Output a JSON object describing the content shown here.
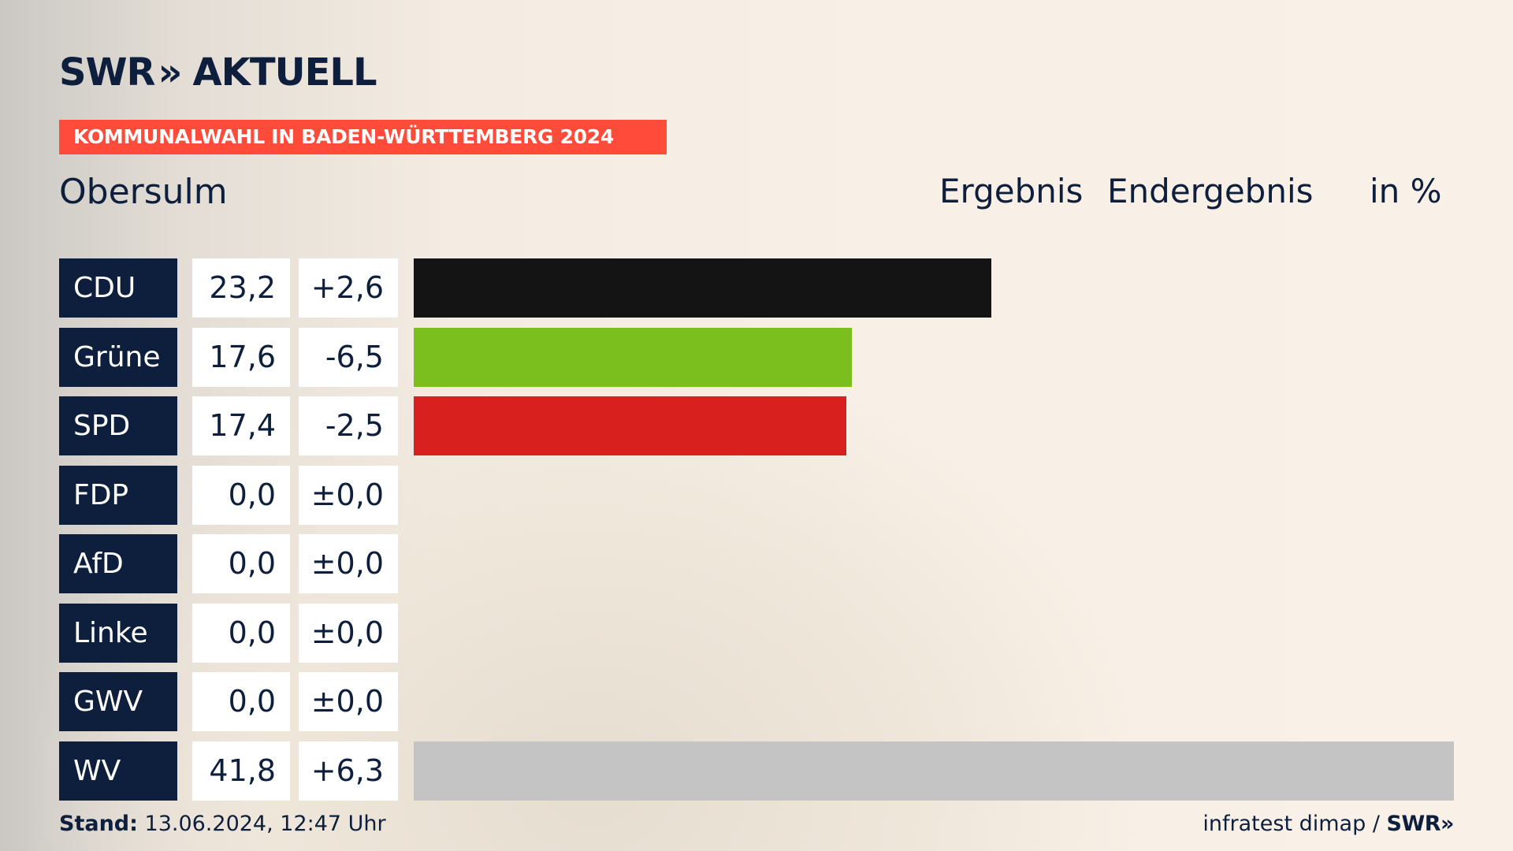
{
  "header": {
    "logo_text": "SWR",
    "logo_chevrons": "»",
    "logo_suffix": "AKTUELL",
    "banner": "KOMMUNALWAHL IN BADEN-WÜRTTEMBERG 2024",
    "place": "Obersulm",
    "col_result": "Ergebnis",
    "col_status": "Endergebnis",
    "col_unit": "in %"
  },
  "footer": {
    "stand_label": "Stand:",
    "stand_value": "13.06.2024, 12:47 Uhr",
    "source": "infratest dimap /",
    "source_logo": "SWR»"
  },
  "chart_data": {
    "type": "bar",
    "title": "Kommunalwahl in Baden-Württemberg 2024 – Obersulm",
    "subtitle": "Ergebnis Endergebnis in %",
    "xlabel": "",
    "ylabel": "in %",
    "xlim": [
      0,
      41.8
    ],
    "grid": false,
    "categories": [
      "CDU",
      "Grüne",
      "SPD",
      "FDP",
      "AfD",
      "Linke",
      "GWV",
      "WV"
    ],
    "values": [
      23.2,
      17.6,
      17.4,
      0.0,
      0.0,
      0.0,
      0.0,
      41.8
    ],
    "value_labels": [
      "23,2",
      "17,6",
      "17,4",
      "0,0",
      "0,0",
      "0,0",
      "0,0",
      "41,8"
    ],
    "diff_labels": [
      "+2,6",
      "-6,5",
      "-2,5",
      "±0,0",
      "±0,0",
      "±0,0",
      "±0,0",
      "+6,3"
    ],
    "diffs": [
      2.6,
      -6.5,
      -2.5,
      0.0,
      0.0,
      0.0,
      0.0,
      6.3
    ],
    "colors": [
      "#141414",
      "#7abf1d",
      "#d8201f",
      "#f5d40b",
      "#1f9ee0",
      "#b2164b",
      "#888888",
      "#c4c4c4"
    ]
  }
}
